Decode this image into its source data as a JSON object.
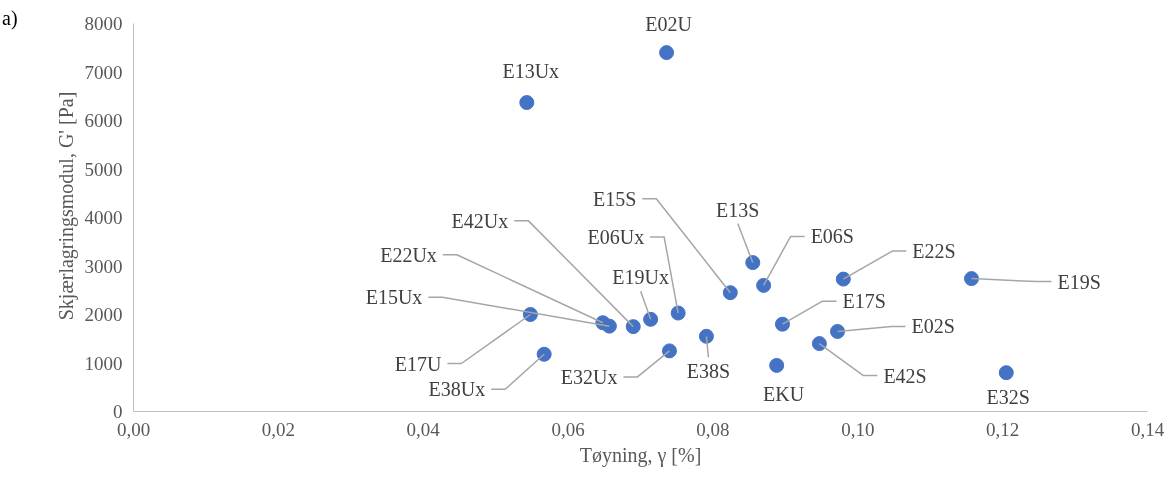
{
  "chart_data": {
    "type": "scatter",
    "xlabel": "Tøyning, γ [%]",
    "ylabel": "Skjærlagringsmodul, G' [Pa]",
    "x": [
      0.0736,
      0.0543,
      0.0824,
      0.0855,
      0.087,
      0.098,
      0.1157,
      0.0896,
      0.0972,
      0.0947,
      0.0888,
      0.1205,
      0.0791,
      0.074,
      0.0752,
      0.0714,
      0.069,
      0.0648,
      0.0657,
      0.0548,
      0.0567
    ],
    "series": [
      {
        "color": "#4472c4",
        "values": [
          7400,
          6370,
          2450,
          3070,
          2600,
          2730,
          2740,
          1800,
          1650,
          1400,
          950,
          800,
          1550,
          1250,
          2030,
          1900,
          1750,
          1830,
          1760,
          2000,
          1180
        ]
      }
    ],
    "marker": "circle",
    "grid": false,
    "xlim": [
      0,
      0.14
    ],
    "ylim": [
      0,
      8000
    ],
    "xticks": [
      {
        "value": 0,
        "label": "0,00"
      },
      {
        "value": 0.02,
        "label": "0,02"
      },
      {
        "value": 0.04,
        "label": "0,04"
      },
      {
        "value": 0.06,
        "label": "0,06"
      },
      {
        "value": 0.08,
        "label": "0,08"
      },
      {
        "value": 0.1,
        "label": "0,10"
      },
      {
        "value": 0.12,
        "label": "0,12"
      },
      {
        "value": 0.14,
        "label": "0,14"
      }
    ],
    "yticks": [
      0,
      1000,
      2000,
      3000,
      4000,
      5000,
      6000,
      7000,
      8000
    ],
    "annotations": [
      "a)",
      {
        "text": "E02U",
        "x": 0.0736,
        "y": 7400
      },
      {
        "text": "E13Ux",
        "x": 0.0543,
        "y": 6370
      },
      {
        "text": "E15S",
        "x": 0.0824,
        "y": 2450
      },
      {
        "text": "E13S",
        "x": 0.0855,
        "y": 3070
      },
      {
        "text": "E06S",
        "x": 0.087,
        "y": 2600
      },
      {
        "text": "E22S",
        "x": 0.098,
        "y": 2730
      },
      {
        "text": "E19S",
        "x": 0.1157,
        "y": 2740
      },
      {
        "text": "E17S",
        "x": 0.0896,
        "y": 1800
      },
      {
        "text": "E02S",
        "x": 0.0972,
        "y": 1650
      },
      {
        "text": "E42S",
        "x": 0.0947,
        "y": 1400
      },
      {
        "text": "EKU",
        "x": 0.0888,
        "y": 950
      },
      {
        "text": "E32S",
        "x": 0.1205,
        "y": 800
      },
      {
        "text": "E38S",
        "x": 0.0791,
        "y": 1550
      },
      {
        "text": "E32Ux",
        "x": 0.074,
        "y": 1250
      },
      {
        "text": "E06Ux",
        "x": 0.0752,
        "y": 2030
      },
      {
        "text": "E19Ux",
        "x": 0.0714,
        "y": 1900
      },
      {
        "text": "E42Ux",
        "x": 0.069,
        "y": 1750
      },
      {
        "text": "E22Ux",
        "x": 0.0648,
        "y": 1830
      },
      {
        "text": "E15Ux",
        "x": 0.0657,
        "y": 1760
      },
      {
        "text": "E17U",
        "x": 0.0548,
        "y": 2000
      },
      {
        "text": "E38Ux",
        "x": 0.0567,
        "y": 1180
      }
    ]
  }
}
